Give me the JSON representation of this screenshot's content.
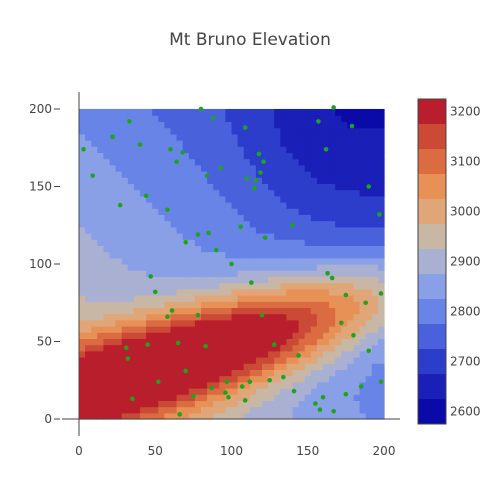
{
  "chart_data": {
    "type": "contour",
    "title": "Mt Bruno Elevation",
    "xlabel": "",
    "ylabel": "",
    "xlim": [
      0,
      200
    ],
    "ylim": [
      0,
      200
    ],
    "xticks": [
      0,
      50,
      100,
      150,
      200
    ],
    "yticks": [
      0,
      50,
      100,
      150,
      200
    ],
    "grid": true,
    "colorscale": {
      "min": 2575,
      "max": 3225,
      "ticks": [
        2600,
        2700,
        2800,
        2900,
        3000,
        3100,
        3200
      ],
      "levels": [
        {
          "from": 2575,
          "to": 2625,
          "color": "#0a0aa8"
        },
        {
          "from": 2625,
          "to": 2675,
          "color": "#1a1fb8"
        },
        {
          "from": 2675,
          "to": 2725,
          "color": "#2c3ccb"
        },
        {
          "from": 2725,
          "to": 2775,
          "color": "#4a61dc"
        },
        {
          "from": 2775,
          "to": 2825,
          "color": "#6784e6"
        },
        {
          "from": 2825,
          "to": 2875,
          "color": "#8aa0e6"
        },
        {
          "from": 2875,
          "to": 2925,
          "color": "#a9b0d2"
        },
        {
          "from": 2925,
          "to": 2975,
          "color": "#c9b7a6"
        },
        {
          "from": 2975,
          "to": 3025,
          "color": "#e0a678"
        },
        {
          "from": 3025,
          "to": 3075,
          "color": "#e79157"
        },
        {
          "from": 3075,
          "to": 3125,
          "color": "#db6c42"
        },
        {
          "from": 3125,
          "to": 3175,
          "color": "#cb4a36"
        },
        {
          "from": 3175,
          "to": 3225,
          "color": "#b81e2c"
        }
      ]
    },
    "surface": {
      "base": 2650,
      "diagonal_gain": 330,
      "ridge": {
        "x": 70,
        "y": 40,
        "height": 470,
        "along_sigma": 95,
        "across_sigma": 20
      }
    },
    "points": [
      [
        3,
        174
      ],
      [
        9,
        157
      ],
      [
        22,
        182
      ],
      [
        27,
        138
      ],
      [
        33,
        192
      ],
      [
        40,
        177
      ],
      [
        44,
        144
      ],
      [
        47,
        92
      ],
      [
        50,
        82
      ],
      [
        58,
        135
      ],
      [
        60,
        174
      ],
      [
        64,
        166
      ],
      [
        68,
        172
      ],
      [
        70,
        114
      ],
      [
        78,
        119
      ],
      [
        80,
        200
      ],
      [
        84,
        157
      ],
      [
        85,
        120
      ],
      [
        88,
        194
      ],
      [
        90,
        109
      ],
      [
        93,
        162
      ],
      [
        106,
        124
      ],
      [
        109,
        188
      ],
      [
        110,
        155
      ],
      [
        113,
        88
      ],
      [
        115,
        149
      ],
      [
        118,
        171
      ],
      [
        121,
        166
      ],
      [
        119,
        159
      ],
      [
        122,
        117
      ],
      [
        140,
        125
      ],
      [
        157,
        192
      ],
      [
        162,
        174
      ],
      [
        167,
        201
      ],
      [
        179,
        189
      ],
      [
        190,
        150
      ],
      [
        197,
        132
      ],
      [
        58,
        66
      ],
      [
        61,
        70
      ],
      [
        100,
        100
      ],
      [
        116,
        154
      ],
      [
        163,
        94
      ],
      [
        166,
        91
      ],
      [
        175,
        80
      ],
      [
        188,
        75
      ],
      [
        198,
        81
      ],
      [
        172,
        62
      ],
      [
        180,
        54
      ],
      [
        190,
        44
      ],
      [
        65,
        49
      ],
      [
        45,
        48
      ],
      [
        31,
        46
      ],
      [
        32,
        39
      ],
      [
        52,
        24
      ],
      [
        70,
        31
      ],
      [
        83,
        47
      ],
      [
        87,
        20
      ],
      [
        96,
        17
      ],
      [
        97,
        24
      ],
      [
        107,
        21
      ],
      [
        112,
        24
      ],
      [
        120,
        67
      ],
      [
        128,
        48
      ],
      [
        125,
        25
      ],
      [
        134,
        27
      ],
      [
        144,
        41
      ],
      [
        141,
        18
      ],
      [
        155,
        10
      ],
      [
        160,
        14
      ],
      [
        167,
        5
      ],
      [
        175,
        16
      ],
      [
        185,
        21
      ],
      [
        198,
        24
      ],
      [
        35,
        13
      ],
      [
        66,
        3
      ],
      [
        75,
        15
      ],
      [
        98,
        14
      ],
      [
        109,
        12
      ],
      [
        158,
        6
      ],
      [
        78,
        67
      ]
    ]
  }
}
